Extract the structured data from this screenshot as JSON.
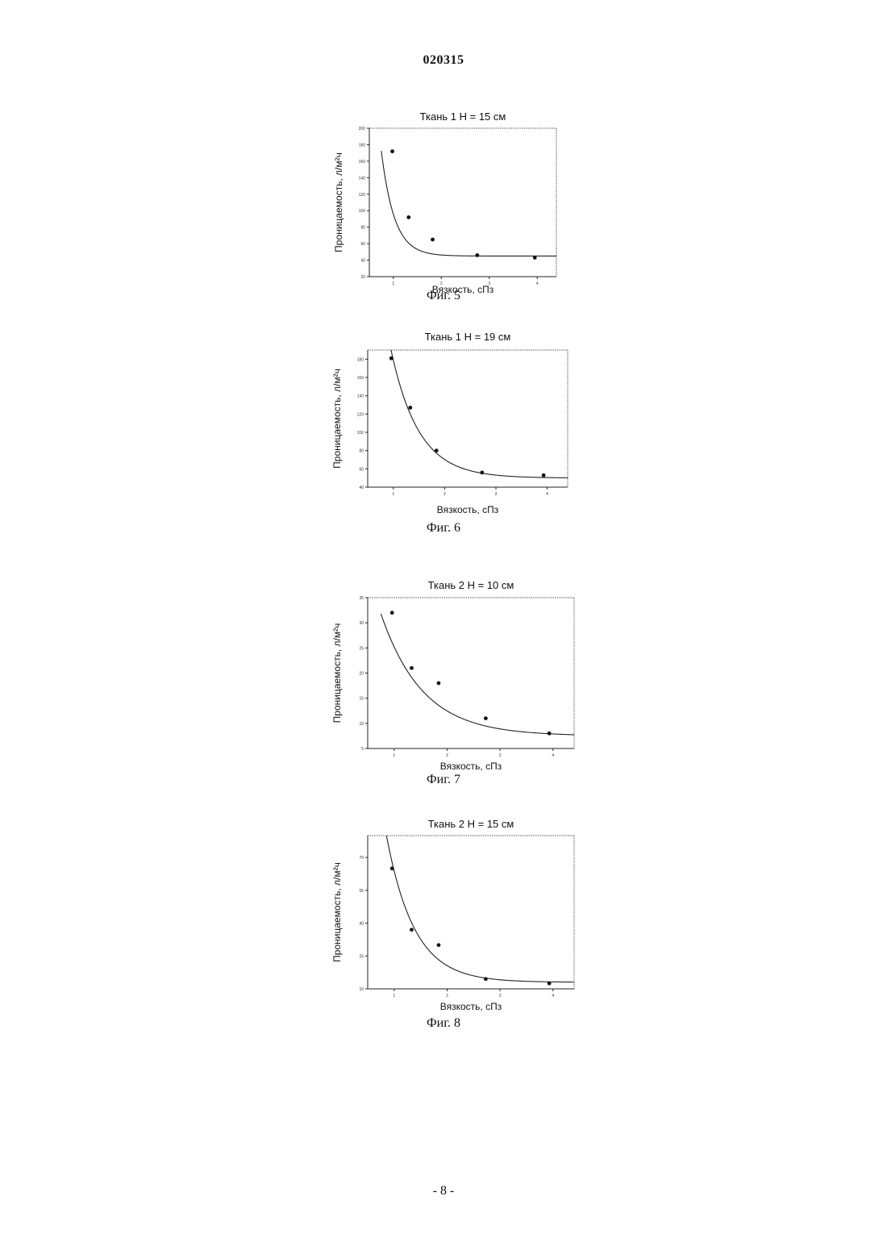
{
  "document": {
    "number": "020315",
    "page": "- 8 -"
  },
  "chart_data": [
    {
      "type": "scatter",
      "title": "Ткань 1 H = 15 см",
      "caption": "Фиг. 5",
      "xlabel": "Вязкость, сПз",
      "ylabel": "Проницаемость, л/м²ч",
      "xlim": [
        0.5,
        4.4
      ],
      "ylim": [
        20,
        200
      ],
      "x_ticks": [
        1,
        2,
        3,
        4
      ],
      "x_tick_labels": [
        "1",
        "2",
        "3",
        "4"
      ],
      "y_ticks": [
        20,
        40,
        60,
        80,
        100,
        120,
        140,
        160,
        180,
        200
      ],
      "y_tick_labels": [
        "20",
        "40",
        "60",
        "80",
        "100",
        "120",
        "140",
        "160",
        "180",
        "200"
      ],
      "grid": false,
      "series": [
        {
          "points": [
            {
              "x": 0.98,
              "y": 172
            },
            {
              "x": 1.32,
              "y": 92
            },
            {
              "x": 1.82,
              "y": 65
            },
            {
              "x": 2.75,
              "y": 46
            },
            {
              "x": 3.95,
              "y": 43
            }
          ],
          "fit": {
            "model": "exponential_decay",
            "y0": 45,
            "A": 2000,
            "k": 3.67
          }
        }
      ]
    },
    {
      "type": "scatter",
      "title": "Ткань 1 H = 19 см",
      "caption": "Фиг. 6",
      "xlabel": "Вязкость, сПз",
      "ylabel": "Проницаемость, л/м²ч",
      "xlim": [
        0.5,
        4.4
      ],
      "ylim": [
        40,
        190
      ],
      "x_ticks": [
        1,
        2,
        3,
        4
      ],
      "x_tick_labels": [
        "1",
        "2",
        "3",
        "4"
      ],
      "y_ticks": [
        40,
        60,
        80,
        100,
        120,
        140,
        160,
        180
      ],
      "y_tick_labels": [
        "40",
        "60",
        "80",
        "100",
        "120",
        "140",
        "160",
        "180"
      ],
      "grid": false,
      "series": [
        {
          "points": [
            {
              "x": 0.96,
              "y": 181
            },
            {
              "x": 1.33,
              "y": 127
            },
            {
              "x": 1.84,
              "y": 80
            },
            {
              "x": 2.73,
              "y": 56
            },
            {
              "x": 3.93,
              "y": 53
            }
          ],
          "fit": {
            "model": "exponential_decay",
            "y0": 50,
            "A": 820,
            "k": 1.85
          }
        }
      ]
    },
    {
      "type": "scatter",
      "title": "Ткань 2 H = 10 см",
      "caption": "Фиг. 7",
      "xlabel": "Вязкость, сПз",
      "ylabel": "Проницаемость, л/м²ч",
      "xlim": [
        0.5,
        4.4
      ],
      "ylim": [
        5,
        35
      ],
      "x_ticks": [
        1,
        2,
        3,
        4
      ],
      "x_tick_labels": [
        "1",
        "2",
        "3",
        "4"
      ],
      "y_ticks": [
        5,
        10,
        15,
        20,
        25,
        30,
        35
      ],
      "y_tick_labels": [
        "5",
        "10",
        "15",
        "20",
        "25",
        "30",
        "35"
      ],
      "grid": false,
      "series": [
        {
          "points": [
            {
              "x": 0.96,
              "y": 32
            },
            {
              "x": 1.33,
              "y": 21
            },
            {
              "x": 1.84,
              "y": 18
            },
            {
              "x": 2.73,
              "y": 11
            },
            {
              "x": 3.93,
              "y": 8
            }
          ],
          "fit": {
            "model": "exponential_decay",
            "y0": 7.5,
            "A": 63,
            "k": 1.27
          }
        }
      ]
    },
    {
      "type": "scatter",
      "title": "Ткань 2 H = 15 см",
      "caption": "Фиг. 8",
      "xlabel": "Вязкость, сПз",
      "ylabel": "Проницаемость, л/м²ч",
      "xlim": [
        0.5,
        4.4
      ],
      "ylim": [
        10,
        80
      ],
      "x_ticks": [
        1,
        2,
        3,
        4
      ],
      "x_tick_labels": [
        "1",
        "2",
        "3",
        "4"
      ],
      "y_ticks": [
        10,
        25,
        40,
        55,
        70
      ],
      "y_tick_labels": [
        "10",
        "25",
        "40",
        "55",
        "70"
      ],
      "grid": false,
      "series": [
        {
          "points": [
            {
              "x": 0.96,
              "y": 65
            },
            {
              "x": 1.33,
              "y": 37
            },
            {
              "x": 1.84,
              "y": 30
            },
            {
              "x": 2.73,
              "y": 14.5
            },
            {
              "x": 3.93,
              "y": 12.5
            }
          ],
          "fit": {
            "model": "exponential_decay",
            "y0": 13,
            "A": 340,
            "k": 1.9
          }
        }
      ]
    }
  ]
}
